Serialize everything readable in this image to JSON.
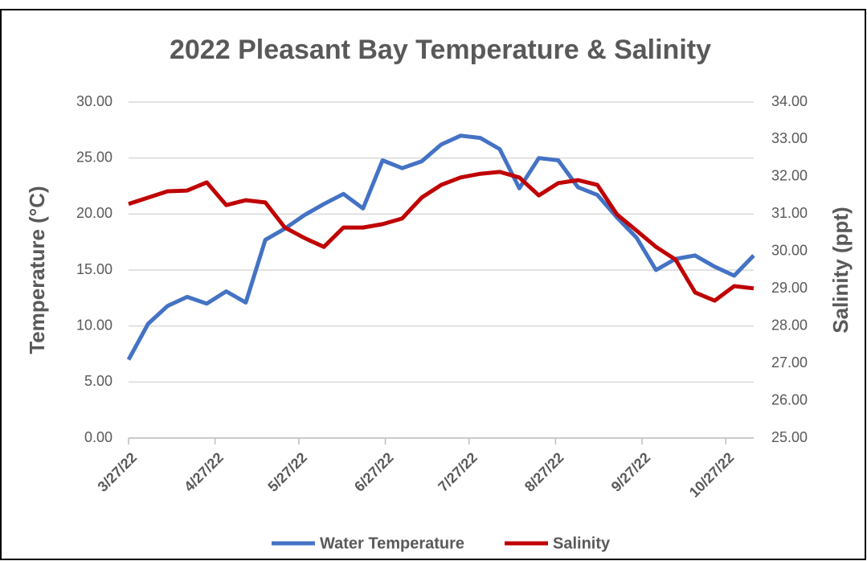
{
  "chart_data": {
    "type": "line",
    "title": "2022 Pleasant Bay Temperature & Salinity",
    "y_label": "Temperature (°C)",
    "y2_label": "Salinity (ppt)",
    "x": [
      "3/27/22",
      "4/3/22",
      "4/10/22",
      "4/17/22",
      "4/24/22",
      "5/1/22",
      "5/8/22",
      "5/15/22",
      "5/22/22",
      "5/29/22",
      "6/5/22",
      "6/12/22",
      "6/19/22",
      "6/26/22",
      "7/3/22",
      "7/10/22",
      "7/17/22",
      "7/24/22",
      "7/31/22",
      "8/7/22",
      "8/14/22",
      "8/21/22",
      "8/28/22",
      "9/4/22",
      "9/11/22",
      "9/18/22",
      "9/25/22",
      "10/2/22",
      "10/9/22",
      "10/16/22",
      "10/23/22",
      "10/30/22",
      "11/6/22"
    ],
    "xlim": [
      "3/27/22",
      "11/6/22"
    ],
    "xticks": [
      "3/27/22",
      "4/27/22",
      "5/27/22",
      "6/27/22",
      "7/27/22",
      "8/27/22",
      "9/27/22",
      "10/27/22"
    ],
    "series": [
      {
        "name": "Water Temperature",
        "color": "#4472c4",
        "values": [
          7.0,
          10.2,
          11.8,
          12.6,
          12.0,
          13.1,
          12.1,
          17.7,
          18.7,
          19.9,
          20.9,
          21.8,
          20.5,
          24.8,
          24.1,
          24.7,
          26.2,
          27.0,
          26.8,
          25.8,
          22.3,
          25.0,
          24.8,
          22.4,
          21.7,
          19.7,
          17.9,
          15.0,
          16.0,
          16.3,
          15.3,
          14.5,
          16.3
        ]
      },
      {
        "name": "Salinity",
        "color": "#c00000",
        "axis": "y2",
        "values": [
          31.27,
          31.44,
          31.61,
          31.63,
          31.85,
          31.24,
          31.37,
          31.31,
          30.64,
          30.36,
          30.12,
          30.64,
          30.64,
          30.73,
          30.88,
          31.44,
          31.78,
          31.98,
          32.08,
          32.13,
          31.98,
          31.5,
          31.83,
          31.91,
          31.78,
          30.99,
          30.56,
          30.12,
          29.78,
          28.9,
          28.68,
          29.07,
          29.01
        ]
      }
    ],
    "ylim": [
      0,
      30
    ],
    "yticks": [
      {
        "value": 0,
        "label": "0.00"
      },
      {
        "value": 5,
        "label": "5.00"
      },
      {
        "value": 10,
        "label": "10.00"
      },
      {
        "value": 15,
        "label": "15.00"
      },
      {
        "value": 20,
        "label": "20.00"
      },
      {
        "value": 25,
        "label": "25.00"
      },
      {
        "value": 30,
        "label": "30.00"
      }
    ],
    "y2lim": [
      25,
      34
    ],
    "y2ticks": [
      {
        "value": 25,
        "label": "25.00"
      },
      {
        "value": 26,
        "label": "26.00"
      },
      {
        "value": 27,
        "label": "27.00"
      },
      {
        "value": 28,
        "label": "28.00"
      },
      {
        "value": 29,
        "label": "29.00"
      },
      {
        "value": 30,
        "label": "30.00"
      },
      {
        "value": 31,
        "label": "31.00"
      },
      {
        "value": 32,
        "label": "32.00"
      },
      {
        "value": 33,
        "label": "33.00"
      },
      {
        "value": 34,
        "label": "34.00"
      }
    ],
    "grid": true,
    "legend": "bottom"
  }
}
